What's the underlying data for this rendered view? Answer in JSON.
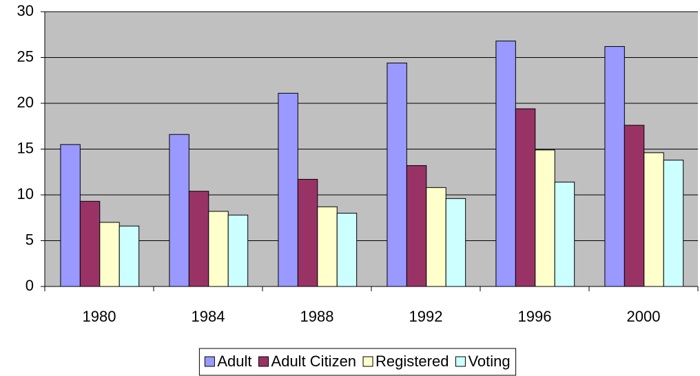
{
  "chart_data": {
    "type": "bar",
    "categories": [
      "1980",
      "1984",
      "1988",
      "1992",
      "1996",
      "2000"
    ],
    "series": [
      {
        "name": "Adult",
        "color": "#9999ff",
        "values": [
          15.5,
          16.6,
          21.1,
          24.4,
          26.8,
          26.2
        ]
      },
      {
        "name": "Adult Citizen",
        "color": "#993366",
        "values": [
          9.3,
          10.4,
          11.7,
          13.2,
          19.4,
          17.6
        ]
      },
      {
        "name": "Registered",
        "color": "#ffffcc",
        "values": [
          7.0,
          8.2,
          8.7,
          10.8,
          14.9,
          14.6
        ]
      },
      {
        "name": "Voting",
        "color": "#ccffff",
        "values": [
          6.6,
          7.8,
          8.0,
          9.6,
          11.4,
          13.8
        ]
      }
    ],
    "ylim": [
      0,
      30
    ],
    "yticks": [
      0,
      5,
      10,
      15,
      20,
      25,
      30
    ],
    "grid": true,
    "legend": "bottom"
  }
}
